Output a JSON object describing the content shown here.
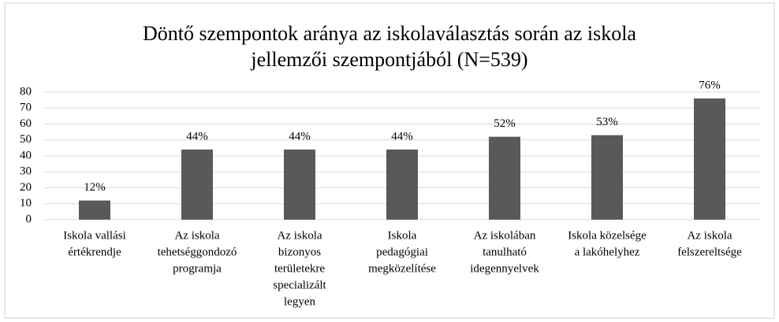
{
  "chart_data": {
    "type": "bar",
    "title": [
      "Döntő szempontok aránya az iskolaválasztás során az iskola",
      "jellemzői szempontjából (N=539)"
    ],
    "categories": [
      [
        "Iskola vallási",
        "értékrendje"
      ],
      [
        "Az iskola",
        "tehetséggondozó",
        "programja"
      ],
      [
        "Az iskola",
        "bizonyos",
        "területekre",
        "specializált",
        "legyen"
      ],
      [
        "Iskola",
        "pedagógiai",
        "megközelítése"
      ],
      [
        "Az iskolában",
        "tanulható",
        "idegennyelvek"
      ],
      [
        "Iskola közelsége",
        "a lakóhelyhez"
      ],
      [
        "Az iskola",
        "felszereltsége"
      ]
    ],
    "values": [
      12,
      44,
      44,
      44,
      52,
      53,
      76
    ],
    "value_labels": [
      "12%",
      "44%",
      "44%",
      "44%",
      "52%",
      "53%",
      "76%"
    ],
    "color": "#595959",
    "ylim": [
      0,
      80
    ],
    "yticks": [
      0,
      10,
      20,
      30,
      40,
      50,
      60,
      70,
      80
    ],
    "grid": true
  }
}
